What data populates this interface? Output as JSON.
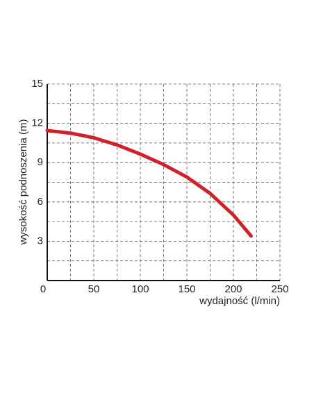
{
  "chart_data": {
    "type": "line",
    "x_label": "wydajność (l/min)",
    "y_label": "wysokość podnoszenia (m)",
    "x": [
      0,
      25,
      50,
      75,
      100,
      125,
      150,
      175,
      200,
      219
    ],
    "series": [
      {
        "color": "#d0222a",
        "values": [
          11.45,
          11.25,
          10.9,
          10.35,
          9.65,
          8.85,
          7.9,
          6.65,
          5.0,
          3.4
        ]
      }
    ],
    "xlim": [
      0,
      250
    ],
    "ylim": [
      0,
      15
    ],
    "xticks": [
      0,
      50,
      100,
      150,
      200,
      250
    ],
    "yticks": [
      3,
      6,
      9,
      12,
      15
    ],
    "x_minor_grid": [
      25,
      75,
      125,
      175,
      225
    ],
    "y_minor_grid": [
      1.5,
      4.5,
      7.5,
      10.5,
      13.5
    ],
    "grid": true
  }
}
